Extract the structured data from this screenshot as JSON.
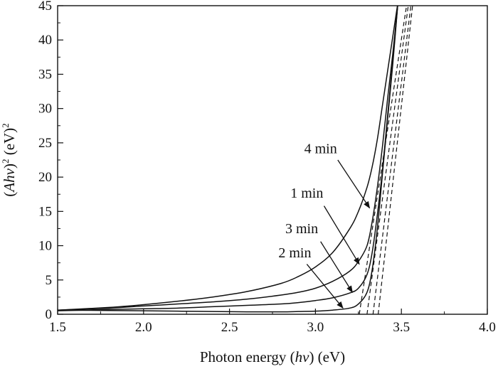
{
  "chart_data": {
    "type": "line",
    "title": "",
    "xlabel": {
      "pre": "Photon energy (",
      "var": "hν",
      "post": ") (eV)"
    },
    "ylabel": {
      "pre": "(",
      "var": "Ahν",
      "post": ")",
      "sup1": "2",
      "mid": " (eV)",
      "sup2": "2"
    },
    "xlim": [
      1.5,
      4.0
    ],
    "ylim": [
      0,
      45
    ],
    "xticks": [
      1.5,
      2.0,
      2.5,
      3.0,
      3.5,
      4.0
    ],
    "xtick_labels": [
      "1.5",
      "2.0",
      "2.5",
      "3.0",
      "3.5",
      "4.0"
    ],
    "yticks": [
      0,
      5,
      10,
      15,
      20,
      25,
      30,
      35,
      40,
      45
    ],
    "ytick_labels": [
      "0",
      "5",
      "10",
      "15",
      "20",
      "25",
      "30",
      "35",
      "40",
      "45"
    ],
    "grid": false,
    "legend": "none",
    "series": [
      {
        "name": "4 min",
        "x": [
          1.5,
          1.8,
          2.0,
          2.2,
          2.4,
          2.6,
          2.8,
          2.9,
          3.0,
          3.1,
          3.2,
          3.25,
          3.3,
          3.33,
          3.36,
          3.39,
          3.42,
          3.45,
          3.48
        ],
        "y": [
          0.6,
          1.0,
          1.4,
          1.9,
          2.5,
          3.3,
          4.5,
          5.5,
          6.9,
          9.0,
          12.5,
          15.0,
          18.5,
          21.5,
          25.5,
          30.5,
          35.5,
          40.5,
          45.5
        ]
      },
      {
        "name": "1 min",
        "x": [
          1.5,
          1.8,
          2.0,
          2.2,
          2.4,
          2.6,
          2.8,
          2.9,
          3.0,
          3.1,
          3.2,
          3.25,
          3.3,
          3.33,
          3.36,
          3.39,
          3.42,
          3.45,
          3.48
        ],
        "y": [
          0.6,
          0.9,
          1.2,
          1.5,
          1.8,
          2.2,
          2.8,
          3.2,
          3.8,
          4.8,
          6.3,
          7.7,
          10.0,
          13.5,
          18.5,
          24.5,
          31.5,
          38.0,
          45.5
        ]
      },
      {
        "name": "3 min",
        "x": [
          1.5,
          1.8,
          2.0,
          2.2,
          2.4,
          2.6,
          2.8,
          2.9,
          3.0,
          3.1,
          3.2,
          3.25,
          3.3,
          3.33,
          3.36,
          3.39,
          3.42,
          3.45,
          3.48
        ],
        "y": [
          0.5,
          0.7,
          0.8,
          0.9,
          1.1,
          1.3,
          1.5,
          1.7,
          2.0,
          2.4,
          3.1,
          3.8,
          5.8,
          9.0,
          14.5,
          21.0,
          29.0,
          37.0,
          45.5
        ]
      },
      {
        "name": "2 min",
        "x": [
          1.5,
          1.8,
          2.0,
          2.2,
          2.4,
          2.6,
          2.8,
          2.9,
          3.0,
          3.1,
          3.2,
          3.25,
          3.3,
          3.33,
          3.36,
          3.39,
          3.42,
          3.45,
          3.48
        ],
        "y": [
          0.6,
          0.55,
          0.5,
          0.45,
          0.4,
          0.35,
          0.35,
          0.4,
          0.45,
          0.6,
          0.9,
          1.5,
          3.2,
          6.5,
          12.5,
          20.5,
          28.5,
          36.5,
          45.5
        ]
      }
    ],
    "extrapolation_lines": [
      {
        "x": [
          3.255,
          3.53
        ],
        "y": [
          0,
          45
        ]
      },
      {
        "x": [
          3.3,
          3.54
        ],
        "y": [
          0,
          45
        ]
      },
      {
        "x": [
          3.335,
          3.555
        ],
        "y": [
          0,
          45
        ]
      },
      {
        "x": [
          3.365,
          3.565
        ],
        "y": [
          0,
          45
        ]
      }
    ],
    "annotations": [
      {
        "text": "4 min",
        "label_x": 3.03,
        "label_y": 23.5,
        "arrow_from": [
          3.13,
          22.5
        ],
        "arrow_to": [
          3.315,
          15.5
        ]
      },
      {
        "text": "1 min",
        "label_x": 2.95,
        "label_y": 17.0,
        "arrow_from": [
          3.05,
          15.8
        ],
        "arrow_to": [
          3.255,
          7.3
        ]
      },
      {
        "text": "3 min",
        "label_x": 2.92,
        "label_y": 11.8,
        "arrow_from": [
          3.03,
          10.6
        ],
        "arrow_to": [
          3.215,
          3.2
        ]
      },
      {
        "text": "2 min",
        "label_x": 2.88,
        "label_y": 8.3,
        "arrow_from": [
          2.95,
          7.3
        ],
        "arrow_to": [
          3.16,
          0.9
        ]
      }
    ]
  }
}
